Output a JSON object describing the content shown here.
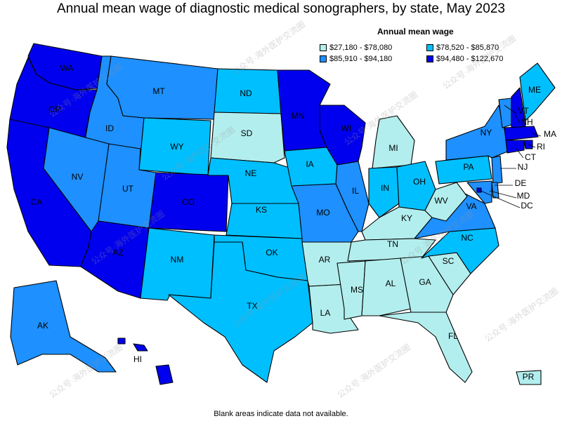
{
  "title": "Annual mean wage of diagnostic medical sonographers, by state, May 2023",
  "legend": {
    "title": "Annual mean wage",
    "ranges": [
      {
        "label": "$27,180 - $78,080",
        "color": "#b3eeee"
      },
      {
        "label": "$78,520 - $85,870",
        "color": "#00bfff"
      },
      {
        "label": "$85,910 - $94,180",
        "color": "#1e90ff"
      },
      {
        "label": "$94,480 - $122,670",
        "color": "#0000ee"
      }
    ]
  },
  "states": [
    {
      "abbr": "WA",
      "tier": 3
    },
    {
      "abbr": "OR",
      "tier": 3
    },
    {
      "abbr": "CA",
      "tier": 3
    },
    {
      "abbr": "ID",
      "tier": 2
    },
    {
      "abbr": "NV",
      "tier": 2
    },
    {
      "abbr": "MT",
      "tier": 2
    },
    {
      "abbr": "WY",
      "tier": 1
    },
    {
      "abbr": "UT",
      "tier": 2
    },
    {
      "abbr": "AZ",
      "tier": 3
    },
    {
      "abbr": "CO",
      "tier": 3
    },
    {
      "abbr": "NM",
      "tier": 1
    },
    {
      "abbr": "ND",
      "tier": 1
    },
    {
      "abbr": "SD",
      "tier": 0
    },
    {
      "abbr": "NE",
      "tier": 1
    },
    {
      "abbr": "KS",
      "tier": 1
    },
    {
      "abbr": "OK",
      "tier": 1
    },
    {
      "abbr": "TX",
      "tier": 1
    },
    {
      "abbr": "MN",
      "tier": 3
    },
    {
      "abbr": "IA",
      "tier": 1
    },
    {
      "abbr": "MO",
      "tier": 2
    },
    {
      "abbr": "AR",
      "tier": 0
    },
    {
      "abbr": "LA",
      "tier": 0
    },
    {
      "abbr": "WI",
      "tier": 3
    },
    {
      "abbr": "IL",
      "tier": 2
    },
    {
      "abbr": "MI",
      "tier": 0
    },
    {
      "abbr": "IN",
      "tier": 1
    },
    {
      "abbr": "OH",
      "tier": 1
    },
    {
      "abbr": "KY",
      "tier": 0
    },
    {
      "abbr": "TN",
      "tier": 0
    },
    {
      "abbr": "MS",
      "tier": 0
    },
    {
      "abbr": "AL",
      "tier": 0
    },
    {
      "abbr": "GA",
      "tier": 0
    },
    {
      "abbr": "FL",
      "tier": 0
    },
    {
      "abbr": "SC",
      "tier": 0
    },
    {
      "abbr": "NC",
      "tier": 1
    },
    {
      "abbr": "VA",
      "tier": 2
    },
    {
      "abbr": "WV",
      "tier": 0
    },
    {
      "abbr": "PA",
      "tier": 1
    },
    {
      "abbr": "NY",
      "tier": 2
    },
    {
      "abbr": "VT",
      "tier": 2
    },
    {
      "abbr": "NH",
      "tier": 3
    },
    {
      "abbr": "ME",
      "tier": 1
    },
    {
      "abbr": "MA",
      "tier": 3
    },
    {
      "abbr": "RI",
      "tier": 3
    },
    {
      "abbr": "CT",
      "tier": 3
    },
    {
      "abbr": "NJ",
      "tier": 2
    },
    {
      "abbr": "DE",
      "tier": 2
    },
    {
      "abbr": "MD",
      "tier": 2
    },
    {
      "abbr": "DC",
      "tier": 3
    },
    {
      "abbr": "AK",
      "tier": 2
    },
    {
      "abbr": "HI",
      "tier": 3
    },
    {
      "abbr": "PR",
      "tier": 0
    }
  ],
  "footnote": "Blank areas indicate data not available.",
  "watermark_text": "公众号·海外医护交流圈"
}
